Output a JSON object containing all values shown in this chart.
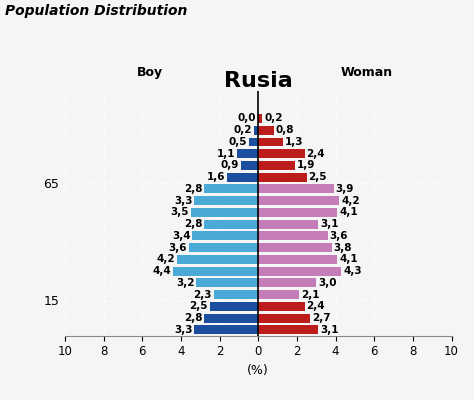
{
  "title": "Rusia",
  "suptitle": "Population Distribution",
  "xlabel": "(%)",
  "boy_label": "Boy",
  "woman_label": "Woman",
  "xlim": [
    -10,
    10
  ],
  "boy_values": [
    0.0,
    0.2,
    0.5,
    1.1,
    0.9,
    1.6,
    2.8,
    3.3,
    3.5,
    2.8,
    3.4,
    3.6,
    4.2,
    4.4,
    3.2,
    2.3,
    2.5,
    2.8,
    3.3
  ],
  "woman_values": [
    0.2,
    0.8,
    1.3,
    2.4,
    1.9,
    2.5,
    3.9,
    4.2,
    4.1,
    3.1,
    3.6,
    3.8,
    4.1,
    4.3,
    3.0,
    2.1,
    2.4,
    2.7,
    3.1
  ],
  "color_dark_blue": "#1c4ea0",
  "color_light_blue": "#49aad8",
  "color_dark_red": "#bc1c1c",
  "color_light_purple": "#c47db8",
  "bg_color": "#f5f5f5",
  "bar_height": 0.75,
  "title_fontsize": 16,
  "suptitle_fontsize": 10,
  "bar_label_fontsize": 7.5,
  "axis_label_fontsize": 9,
  "ytick_fontsize": 9,
  "xtick_fontsize": 8.5,
  "n_old": 6,
  "n_young": 3
}
